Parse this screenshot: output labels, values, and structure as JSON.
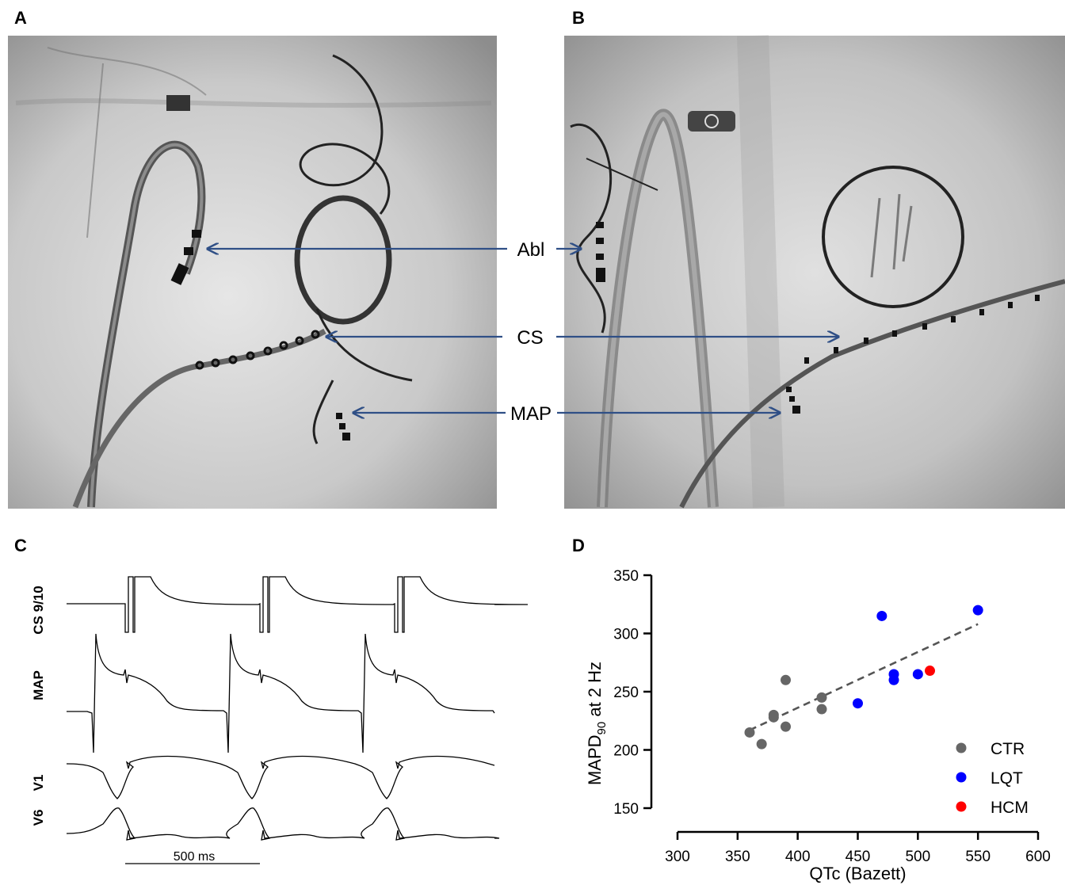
{
  "panels": {
    "a": "A",
    "b": "B",
    "c": "C",
    "d": "D"
  },
  "fluoro_labels": {
    "abl": "Abl",
    "cs": "CS",
    "map": "MAP"
  },
  "traces": {
    "channels": [
      "CS 9/10",
      "MAP",
      "V1",
      "V6"
    ],
    "scale_bar": "500 ms"
  },
  "chart_data": {
    "type": "scatter",
    "title": "",
    "xlabel": "QTc (Bazett)",
    "ylabel_main": "MAPD",
    "ylabel_sub": "90",
    "ylabel_rest": " at 2 Hz",
    "xlim": [
      300,
      600
    ],
    "ylim": [
      150,
      350
    ],
    "xticks": [
      300,
      350,
      400,
      450,
      500,
      550,
      600
    ],
    "yticks": [
      150,
      200,
      250,
      300,
      350
    ],
    "legend_position": "bottom-right",
    "series": [
      {
        "name": "CTR",
        "color": "#666666",
        "points": [
          [
            360,
            215
          ],
          [
            370,
            205
          ],
          [
            380,
            230
          ],
          [
            380,
            228
          ],
          [
            390,
            260
          ],
          [
            390,
            220
          ],
          [
            420,
            245
          ],
          [
            420,
            235
          ]
        ]
      },
      {
        "name": "LQT",
        "color": "#0000ff",
        "points": [
          [
            450,
            240
          ],
          [
            470,
            315
          ],
          [
            480,
            265
          ],
          [
            480,
            260
          ],
          [
            500,
            265
          ],
          [
            550,
            320
          ]
        ]
      },
      {
        "name": "HCM",
        "color": "#ff0000",
        "points": [
          [
            510,
            268
          ]
        ]
      }
    ],
    "trendline": {
      "style": "dashed",
      "color": "#555555",
      "from": [
        360,
        217
      ],
      "to": [
        550,
        308
      ]
    }
  }
}
